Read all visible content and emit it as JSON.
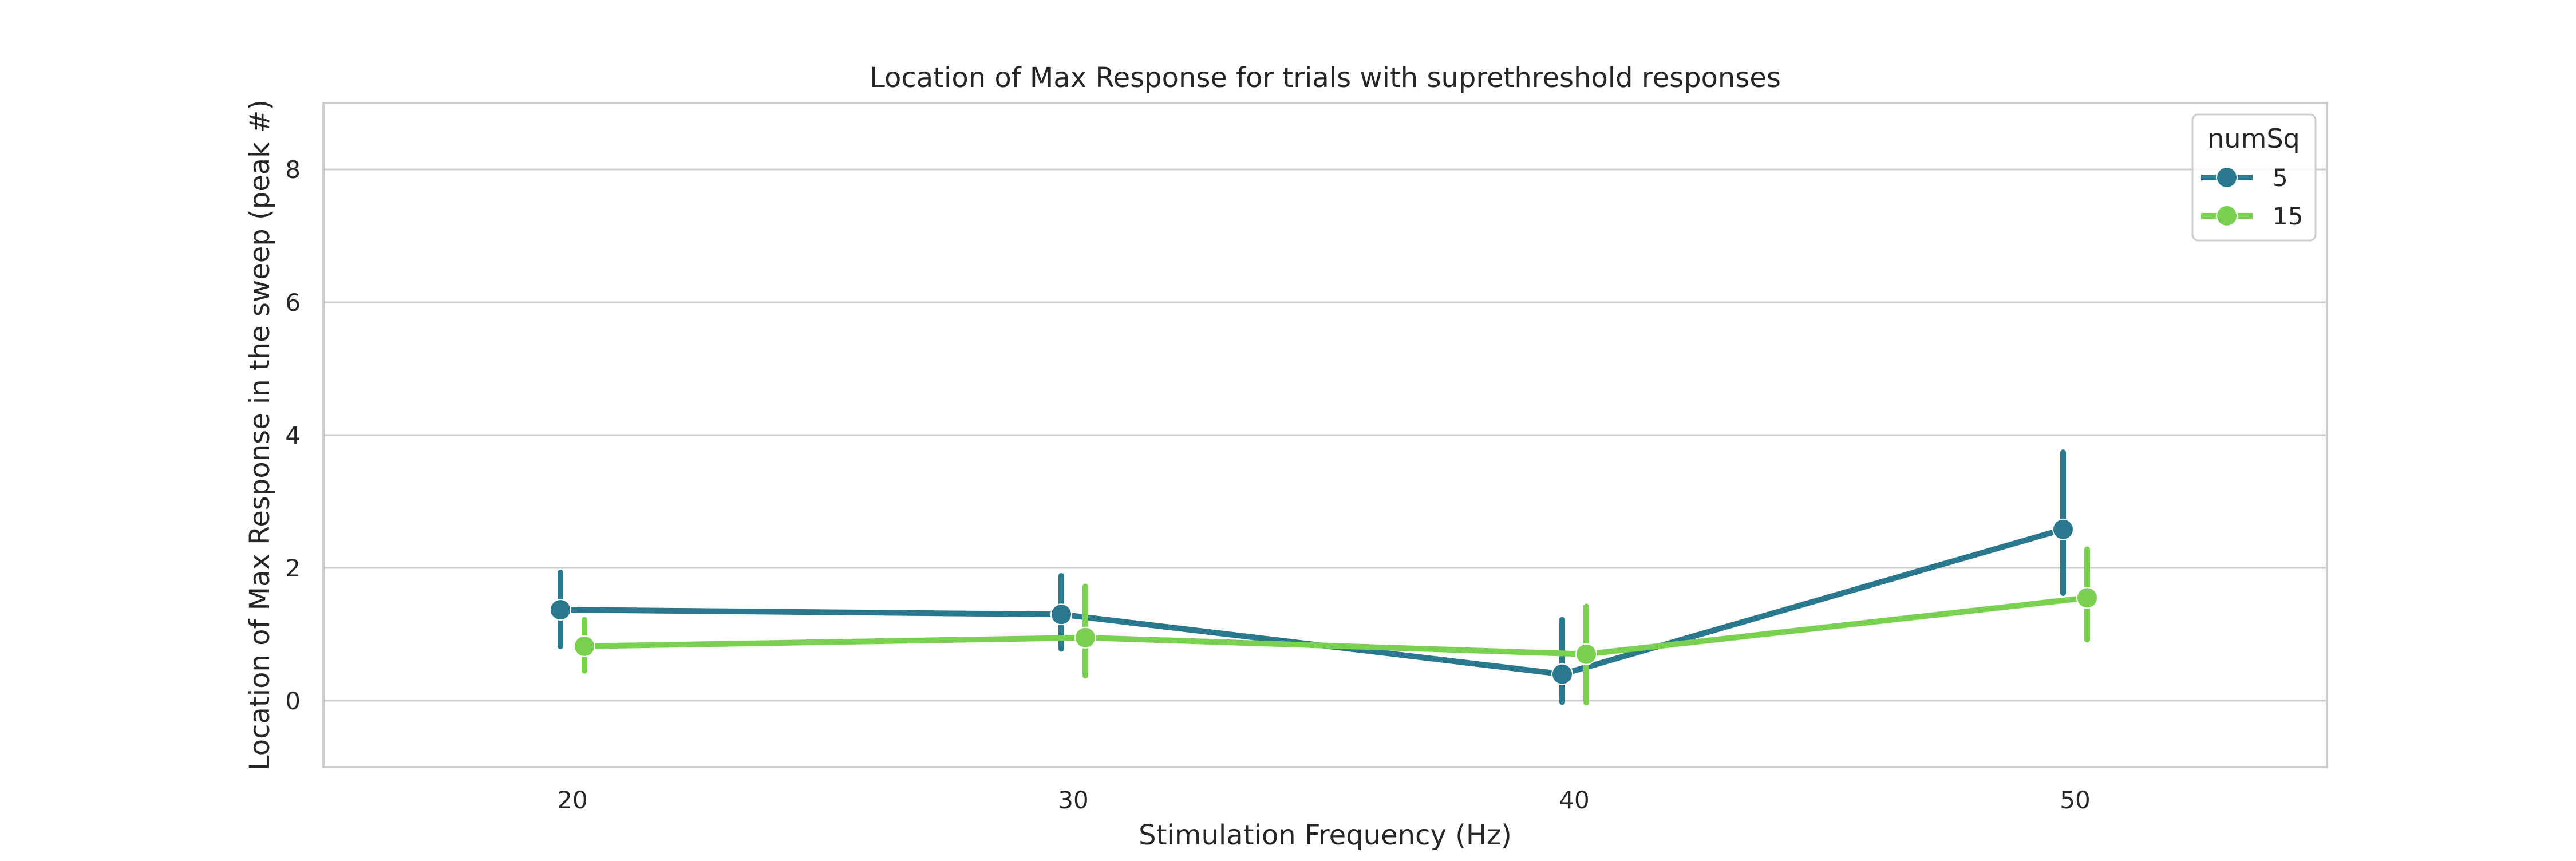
{
  "colors": {
    "background": "#ffffff",
    "grid": "#cccccc",
    "frame": "#cccccc",
    "text": "#262626"
  },
  "chart_data": {
    "type": "line",
    "title": "Location of Max Response for trials with suprethreshold responses",
    "xlabel": "Stimulation Frequency (Hz)",
    "ylabel": "Location of Max Response in the sweep (peak #)",
    "categories": [
      "20",
      "30",
      "40",
      "50"
    ],
    "ylim": [
      -1,
      9
    ],
    "yticks": [
      0,
      2,
      4,
      6,
      8
    ],
    "grid": true,
    "legend": {
      "title": "numSq",
      "placement": "top-right"
    },
    "series": [
      {
        "name": "5",
        "color": "#2a788e",
        "values": [
          1.37,
          1.3,
          0.4,
          2.58
        ],
        "ci_low": [
          0.82,
          0.78,
          -0.02,
          1.62
        ],
        "ci_high": [
          1.93,
          1.88,
          1.22,
          3.74
        ]
      },
      {
        "name": "15",
        "color": "#7ad151",
        "values": [
          0.82,
          0.95,
          0.7,
          1.55
        ],
        "ci_low": [
          0.45,
          0.38,
          -0.03,
          0.92
        ],
        "ci_high": [
          1.22,
          1.72,
          1.42,
          2.28
        ]
      }
    ]
  }
}
